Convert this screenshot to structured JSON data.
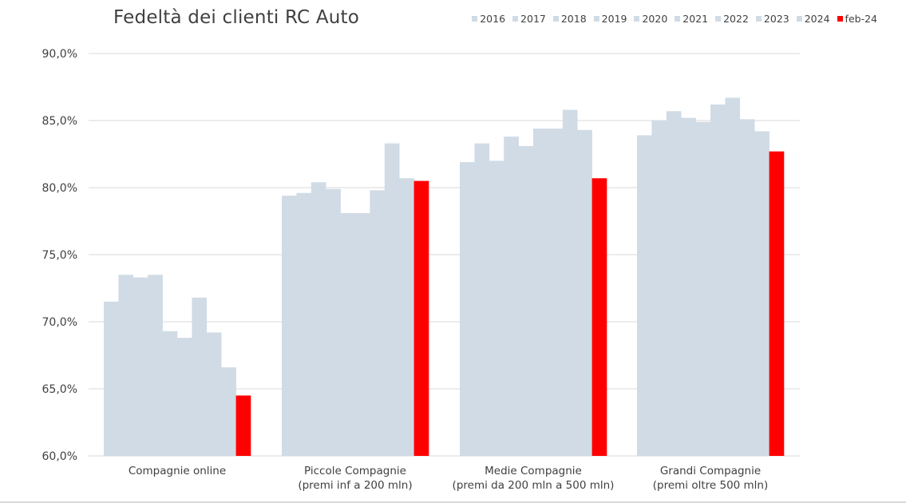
{
  "chart_data": {
    "type": "bar",
    "title": "Fedeltà dei clienti RC Auto",
    "categories": [
      [
        "Compagnie online"
      ],
      [
        "Piccole Compagnie",
        "(premi inf a 200 mln)"
      ],
      [
        "Medie Compagnie",
        "(premi da 200 mln a 500 mln)"
      ],
      [
        "Grandi Compagnie",
        "(premi oltre 500 mln)"
      ]
    ],
    "series": [
      {
        "name": "2016",
        "color": "#d0dbe5",
        "values": [
          71.5,
          79.4,
          81.9,
          83.9
        ]
      },
      {
        "name": "2017",
        "color": "#d0dbe5",
        "values": [
          73.5,
          79.6,
          83.3,
          85.0
        ]
      },
      {
        "name": "2018",
        "color": "#d0dbe5",
        "values": [
          73.3,
          80.4,
          82.0,
          85.7
        ]
      },
      {
        "name": "2019",
        "color": "#d0dbe5",
        "values": [
          73.5,
          79.9,
          83.8,
          85.2
        ]
      },
      {
        "name": "2020",
        "color": "#d0dbe5",
        "values": [
          69.3,
          78.1,
          83.1,
          84.9
        ]
      },
      {
        "name": "2021",
        "color": "#d0dbe5",
        "values": [
          68.8,
          78.1,
          84.4,
          86.2
        ]
      },
      {
        "name": "2022",
        "color": "#d0dbe5",
        "values": [
          71.8,
          79.8,
          84.4,
          86.7
        ]
      },
      {
        "name": "2023",
        "color": "#d0dbe5",
        "values": [
          69.2,
          83.3,
          85.8,
          85.1
        ]
      },
      {
        "name": "2024",
        "color": "#d0dbe5",
        "values": [
          66.6,
          80.7,
          84.3,
          84.2
        ]
      },
      {
        "name": "feb-24",
        "color": "#ff0000",
        "values": [
          64.5,
          80.5,
          80.7,
          82.7
        ]
      }
    ],
    "ylim": [
      60,
      90
    ],
    "yticks": [
      60,
      65,
      70,
      75,
      80,
      85,
      90
    ],
    "ytick_labels": [
      "60,0%",
      "65,0%",
      "70,0%",
      "75,0%",
      "80,0%",
      "85,0%",
      "90,0%"
    ],
    "grid": true,
    "legend_position": "top-right",
    "grid_color": "#d9d9d9",
    "text_color": "#404040"
  }
}
